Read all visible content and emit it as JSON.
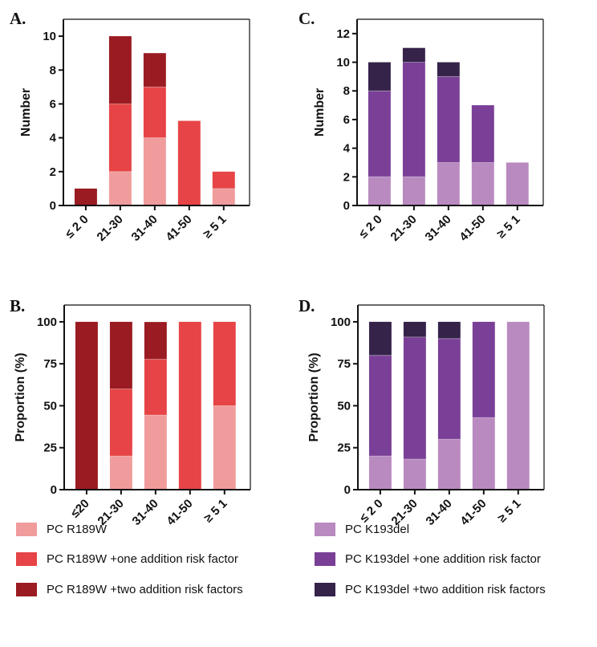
{
  "chart_data": [
    {
      "id": "A",
      "panel_label": "A.",
      "type": "bar",
      "stacked": true,
      "title": "",
      "xlabel": "",
      "ylabel": "Number",
      "ylim": [
        0,
        11
      ],
      "yticks": [
        0,
        2,
        4,
        6,
        8,
        10
      ],
      "categories": [
        "≤ 2 0",
        "21-30",
        "31-40",
        "41-50",
        "≥ 5 1"
      ],
      "series": [
        {
          "name": "PC R189W",
          "color": "#F09C9C",
          "values": [
            0,
            2,
            4,
            0,
            1
          ]
        },
        {
          "name": "PC R189W +one addition risk factor",
          "color": "#E64446",
          "values": [
            0,
            4,
            3,
            5,
            1
          ]
        },
        {
          "name": "PC R189W +two addition risk factors",
          "color": "#9A1B22",
          "values": [
            1,
            4,
            2,
            0,
            0
          ]
        }
      ]
    },
    {
      "id": "B",
      "panel_label": "B.",
      "type": "bar",
      "stacked": true,
      "title": "",
      "xlabel": "",
      "ylabel": "Proportion (%)",
      "ylim": [
        0,
        110
      ],
      "yticks": [
        0,
        25,
        50,
        75,
        100
      ],
      "categories": [
        "≤20",
        "21-30",
        "31-40",
        "41-50",
        "≥ 5 1"
      ],
      "series": [
        {
          "name": "PC R189W",
          "color": "#F09C9C",
          "values": [
            0,
            20,
            44.4,
            0,
            50
          ]
        },
        {
          "name": "PC R189W +one addition risk factor",
          "color": "#E64446",
          "values": [
            0,
            40,
            33.3,
            100,
            50
          ]
        },
        {
          "name": "PC R189W +two addition risk factors",
          "color": "#9A1B22",
          "values": [
            100,
            40,
            22.2,
            0,
            0
          ]
        }
      ]
    },
    {
      "id": "C",
      "panel_label": "C.",
      "type": "bar",
      "stacked": true,
      "title": "",
      "xlabel": "",
      "ylabel": "Number",
      "ylim": [
        0,
        13
      ],
      "yticks": [
        0,
        2,
        4,
        6,
        8,
        10,
        12
      ],
      "categories": [
        "≤ 2 0",
        "21-30",
        "31-40",
        "41-50",
        "≥ 5 1"
      ],
      "series": [
        {
          "name": "PC K193del",
          "color": "#B98AC0",
          "values": [
            2,
            2,
            3,
            3,
            3
          ]
        },
        {
          "name": "PC K193del +one addition risk factor",
          "color": "#7A3F97",
          "values": [
            6,
            8,
            6,
            4,
            0
          ]
        },
        {
          "name": "PC K193del +two addition risk factors",
          "color": "#35234A",
          "values": [
            2,
            1,
            1,
            0,
            0
          ]
        }
      ]
    },
    {
      "id": "D",
      "panel_label": "D.",
      "type": "bar",
      "stacked": true,
      "title": "",
      "xlabel": "",
      "ylabel": "Proportion (%)",
      "ylim": [
        0,
        110
      ],
      "yticks": [
        0,
        25,
        50,
        75,
        100
      ],
      "categories": [
        "≤ 2 0",
        "21-30",
        "31-40",
        "41-50",
        "≥ 5 1"
      ],
      "series": [
        {
          "name": "PC K193del",
          "color": "#B98AC0",
          "values": [
            20,
            18.2,
            30,
            42.9,
            100
          ]
        },
        {
          "name": "PC K193del +one addition risk factor",
          "color": "#7A3F97",
          "values": [
            60,
            72.7,
            60,
            57.1,
            0
          ]
        },
        {
          "name": "PC K193del +two addition risk factors",
          "color": "#35234A",
          "values": [
            20,
            9.1,
            10,
            0,
            0
          ]
        }
      ]
    }
  ],
  "legend": {
    "left": [
      {
        "label": "PC R189W",
        "color": "#F09C9C"
      },
      {
        "label": "PC R189W +one addition risk factor",
        "color": "#E64446"
      },
      {
        "label": "PC R189W +two addition risk factors",
        "color": "#9A1B22"
      }
    ],
    "right": [
      {
        "label": "PC K193del",
        "color": "#B98AC0"
      },
      {
        "label": "PC K193del +one addition risk factor",
        "color": "#7A3F97"
      },
      {
        "label": "PC K193del +two addition risk factors",
        "color": "#35234A"
      }
    ]
  }
}
